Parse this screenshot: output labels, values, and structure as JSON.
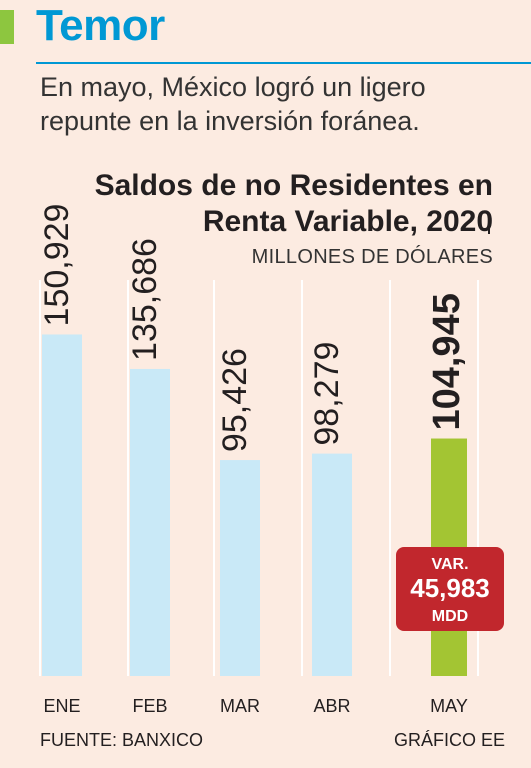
{
  "header": {
    "headline": "Temor",
    "subtitle": "En mayo, México logró un ligero repunte en la inversión foránea."
  },
  "colors": {
    "accent": "#8dc63f",
    "headline": "#0098d4",
    "rule": "#0098d4",
    "bar": "#c9e9f7",
    "highlight_bar": "#a3c533",
    "gridline": "#ffffff",
    "badge": "#c1272d"
  },
  "chart_data": {
    "type": "bar",
    "title": "Saldos de no Residentes en Renta Variable, 2020",
    "ylabel": "MILLONES DE DÓLARES",
    "categories": [
      "ENE",
      "FEB",
      "MAR",
      "ABR",
      "MAY"
    ],
    "values": [
      150929,
      135686,
      95426,
      98279,
      104945
    ],
    "value_labels": [
      "150,929",
      "135,686",
      "95,426",
      "98,279",
      "104,945"
    ],
    "highlight_index": 4,
    "ylim": [
      0,
      175000
    ],
    "grid": true,
    "annotation": {
      "line1": "VAR.",
      "value": "45,983",
      "unit": "MDD"
    }
  },
  "footer": {
    "source": "FUENTE: BANXICO",
    "credit": "GRÁFICO EE"
  }
}
